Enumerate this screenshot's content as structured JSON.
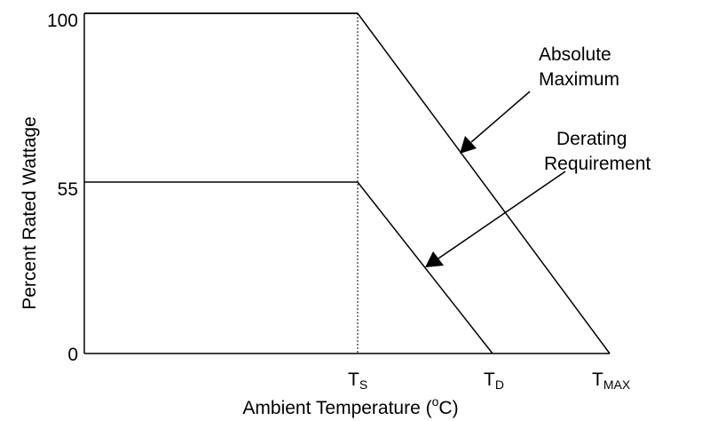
{
  "chart_data": {
    "type": "line",
    "xlabel_main": "Ambient Temperature (",
    "xlabel_sup": "o",
    "xlabel_tail": "C)",
    "ylabel": "Percent Rated Wattage",
    "ylim": [
      0,
      100
    ],
    "y_ticks": [
      "100",
      "55",
      "0"
    ],
    "x_ticks": [
      {
        "base": "T",
        "sub": "S"
      },
      {
        "base": "T",
        "sub": "D"
      },
      {
        "base": "T",
        "sub": "MAX"
      }
    ],
    "series": [
      {
        "name": "Absolute Maximum",
        "points": [
          [
            "0",
            100
          ],
          [
            "T_S",
            100
          ],
          [
            "T_MAX",
            0
          ]
        ]
      },
      {
        "name": "Derating Requirement",
        "points": [
          [
            "0",
            55
          ],
          [
            "T_S",
            55
          ],
          [
            "T_D",
            0
          ]
        ]
      }
    ],
    "annotations": {
      "absolute_line1": "Absolute",
      "absolute_line2": "Maximum",
      "derating_line1": "Derating",
      "derating_line2": "Requirement"
    },
    "grid": false,
    "legend": "none"
  }
}
